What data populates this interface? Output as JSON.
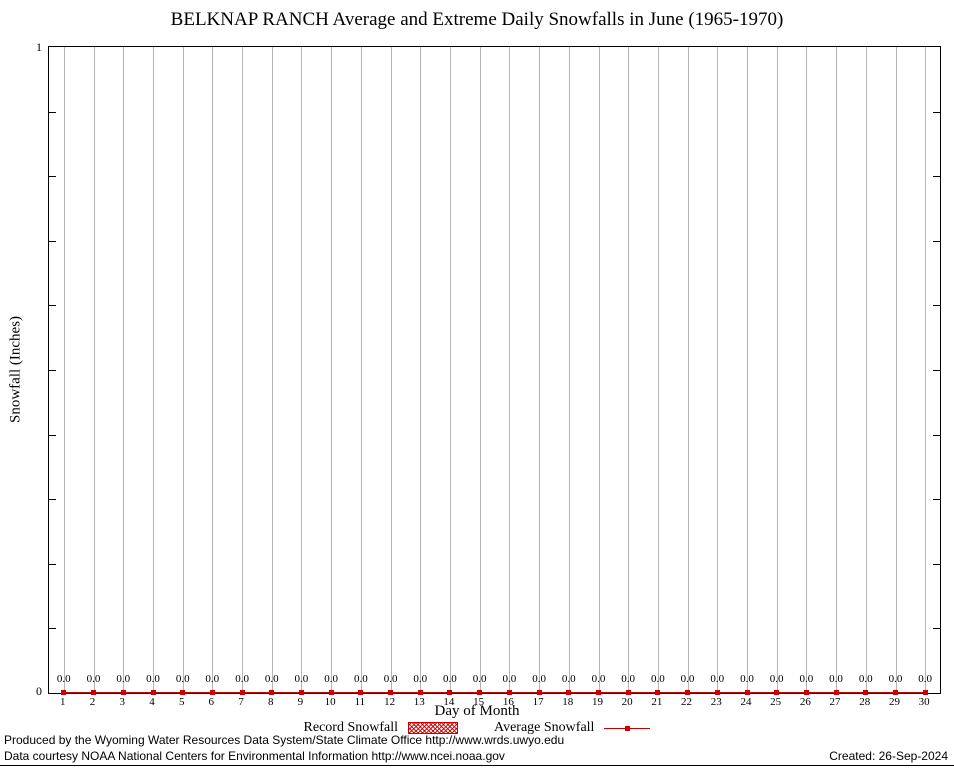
{
  "chart_data": {
    "type": "line",
    "title": "BELKNAP RANCH Average and Extreme Daily Snowfalls in June (1965-1970)",
    "xlabel": "Day of Month",
    "ylabel": "Snowfall (Inches)",
    "ylim": [
      0,
      1
    ],
    "y_tick_labels": [
      "0",
      "1"
    ],
    "grid": "vertical",
    "legend_position": "bottom",
    "categories": [
      1,
      2,
      3,
      4,
      5,
      6,
      7,
      8,
      9,
      10,
      11,
      12,
      13,
      14,
      15,
      16,
      17,
      18,
      19,
      20,
      21,
      22,
      23,
      24,
      25,
      26,
      27,
      28,
      29,
      30
    ],
    "series": [
      {
        "name": "Record Snowfall",
        "type": "bar",
        "values": [
          0,
          0,
          0,
          0,
          0,
          0,
          0,
          0,
          0,
          0,
          0,
          0,
          0,
          0,
          0,
          0,
          0,
          0,
          0,
          0,
          0,
          0,
          0,
          0,
          0,
          0,
          0,
          0,
          0,
          0
        ]
      },
      {
        "name": "Average Snowfall",
        "type": "line",
        "values": [
          0,
          0,
          0,
          0,
          0,
          0,
          0,
          0,
          0,
          0,
          0,
          0,
          0,
          0,
          0,
          0,
          0,
          0,
          0,
          0,
          0,
          0,
          0,
          0,
          0,
          0,
          0,
          0,
          0,
          0
        ]
      }
    ],
    "point_labels": [
      "0.0",
      "0.0",
      "0.0",
      "0.0",
      "0.0",
      "0.0",
      "0.0",
      "0.0",
      "0.0",
      "0.0",
      "0.0",
      "0.0",
      "0.0",
      "0.0",
      "0.0",
      "0.0",
      "0.0",
      "0.0",
      "0.0",
      "0.0",
      "0.0",
      "0.0",
      "0.0",
      "0.0",
      "0.0",
      "0.0",
      "0.0",
      "0.0",
      "0.0",
      "0.0"
    ]
  },
  "legend": {
    "record_label": "Record Snowfall",
    "average_label": "Average Snowfall"
  },
  "footer": {
    "line1": "Produced by the Wyoming Water Resources Data System/State Climate Office http://www.wrds.uwyo.edu",
    "line2": "Data courtesy NOAA National Centers for Environmental Information http://www.ncei.noaa.gov",
    "created": "Created: 26-Sep-2024"
  },
  "colors": {
    "average": "#cc0000",
    "record": "#cc0000",
    "grid": "#b4b4b4",
    "axis": "#000000"
  }
}
